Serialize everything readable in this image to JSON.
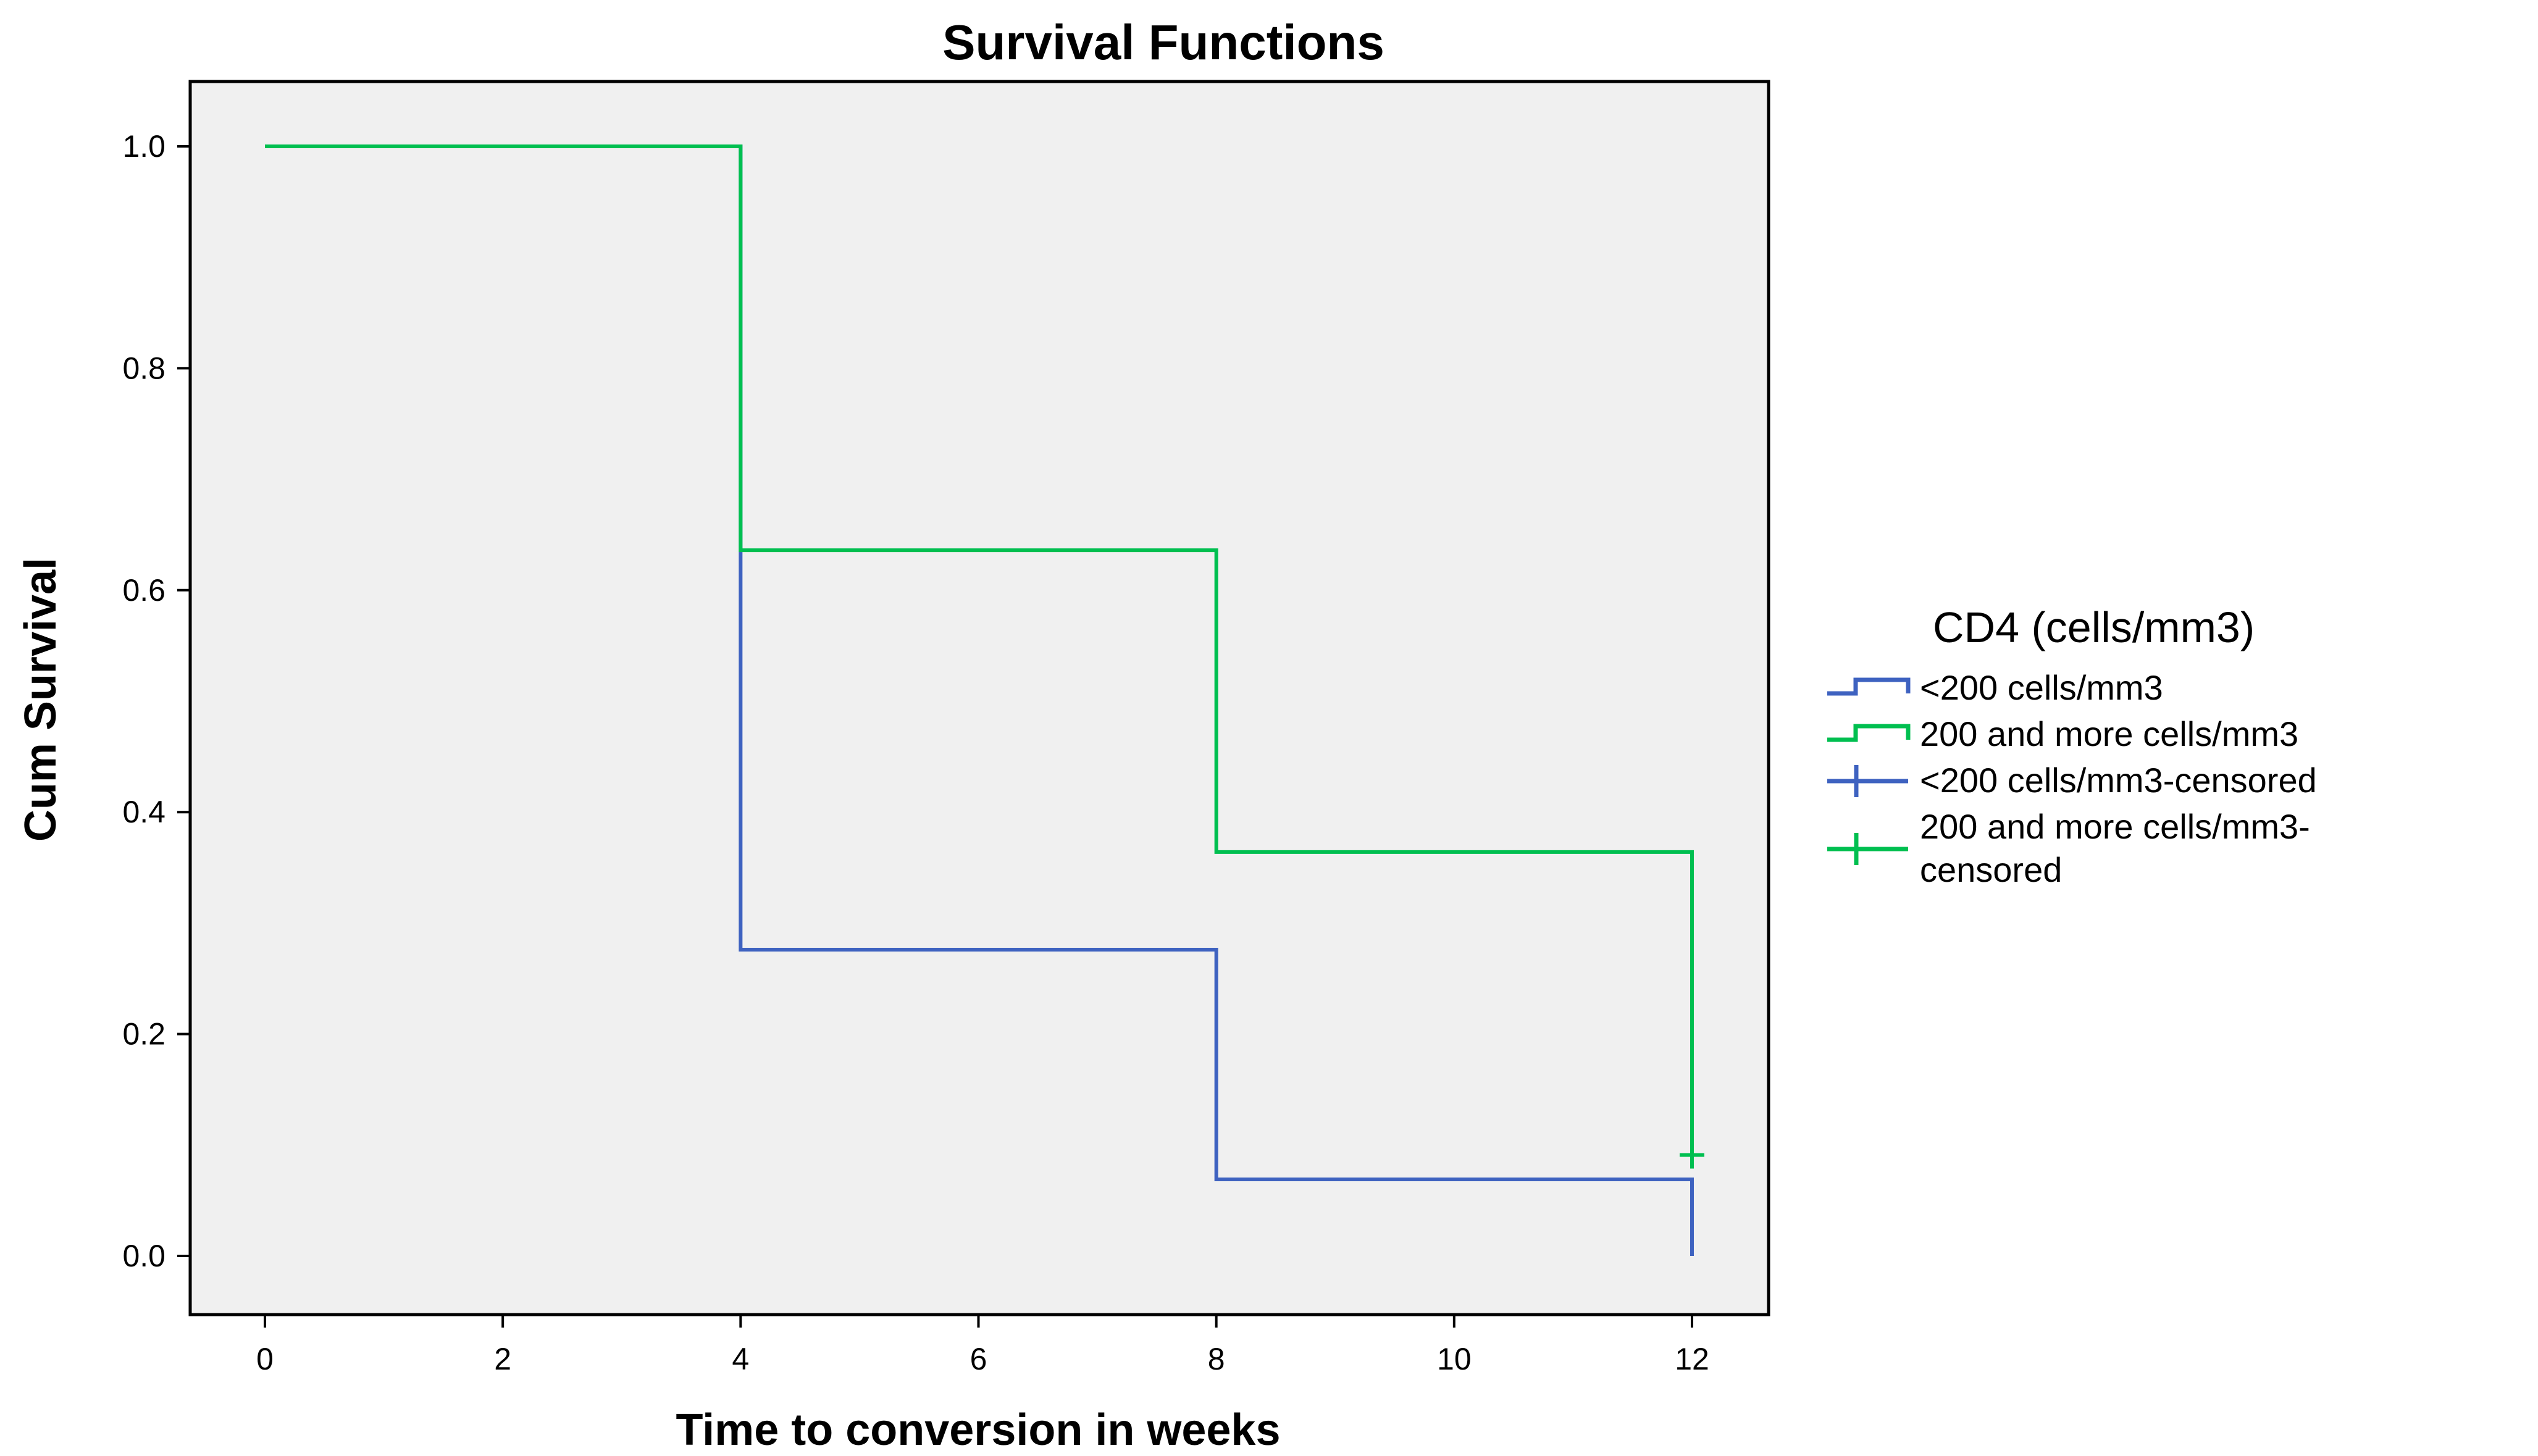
{
  "chart_data": {
    "type": "line",
    "subtype": "kaplan-meier-step",
    "title": "Survival Functions",
    "xlabel": "Time to conversion in weeks",
    "ylabel": "Cum Survival",
    "xlim": [
      0,
      12
    ],
    "ylim": [
      0,
      1
    ],
    "xticks": [
      "0",
      "2",
      "4",
      "6",
      "8",
      "10",
      "12"
    ],
    "yticks": [
      "0.0",
      "0.2",
      "0.4",
      "0.6",
      "0.8",
      "1.0"
    ],
    "grid": false,
    "plot_background": "#f0f0f0",
    "legend": {
      "title": "CD4 (cells/mm3)",
      "placement": "right",
      "entries": [
        {
          "label": "<200 cells/mm3",
          "symbol": "step",
          "color": "#3e62c0"
        },
        {
          "label": "200 and more cells/mm3",
          "symbol": "step",
          "color": "#00bf50"
        },
        {
          "label": "<200 cells/mm3-censored",
          "symbol": "plus",
          "color": "#3e62c0"
        },
        {
          "label": "200 and more cells/mm3-",
          "label_line2": "censored",
          "symbol": "plus",
          "color": "#00bf50"
        }
      ]
    },
    "series": [
      {
        "name": "<200 cells/mm3",
        "color": "#3e62c0",
        "steps": [
          [
            0,
            1.0
          ],
          [
            4,
            0.276
          ],
          [
            8,
            0.069
          ],
          [
            12,
            0.0
          ]
        ],
        "censored": []
      },
      {
        "name": "200 and more cells/mm3",
        "color": "#00bf50",
        "steps": [
          [
            0,
            1.0
          ],
          [
            4,
            0.636
          ],
          [
            8,
            0.364
          ],
          [
            12,
            0.091
          ]
        ],
        "censored": [
          [
            12,
            0.091
          ]
        ]
      }
    ]
  }
}
